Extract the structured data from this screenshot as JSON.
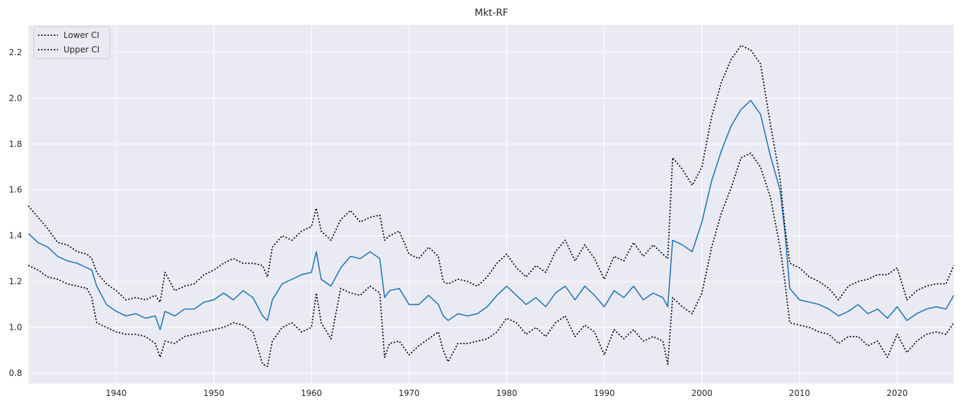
{
  "chart_data": {
    "type": "line",
    "title": "Mkt-RF",
    "xlabel": "",
    "ylabel": "",
    "xlim": [
      1931,
      2025.8
    ],
    "ylim": [
      0.755,
      2.32
    ],
    "xticks": [
      1940,
      1950,
      1960,
      1970,
      1980,
      1990,
      2000,
      2010,
      2020
    ],
    "yticks": [
      0.8,
      1.0,
      1.2,
      1.4,
      1.6,
      1.8,
      2.0,
      2.2
    ],
    "ytick_labels": [
      "0.8",
      "1.0",
      "1.2",
      "1.4",
      "1.6",
      "1.8",
      "2.0",
      "2.2"
    ],
    "grid": true,
    "legend_position": "top-left",
    "legend": [
      "Lower CI",
      "Upper CI"
    ],
    "colors": {
      "estimate": "#1f77b4",
      "ci": "#000000",
      "background": "#eaeaf2",
      "grid": "#ffffff"
    },
    "series": [
      {
        "key": "estimate",
        "style": "solid",
        "x": [
          1931,
          1932,
          1933,
          1934,
          1935,
          1936,
          1937,
          1937.5,
          1938,
          1939,
          1940,
          1941,
          1942,
          1943,
          1944,
          1944.5,
          1945,
          1946,
          1947,
          1948,
          1949,
          1950,
          1951,
          1952,
          1953,
          1954,
          1955,
          1955.5,
          1956,
          1957,
          1958,
          1959,
          1960,
          1960.5,
          1961,
          1962,
          1963,
          1964,
          1965,
          1966,
          1967,
          1967.5,
          1968,
          1969,
          1970,
          1971,
          1972,
          1973,
          1973.5,
          1974,
          1975,
          1976,
          1977,
          1978,
          1979,
          1980,
          1981,
          1982,
          1983,
          1984,
          1985,
          1986,
          1987,
          1988,
          1989,
          1990,
          1991,
          1992,
          1993,
          1994,
          1995,
          1996,
          1996.5,
          1997,
          1998,
          1999,
          2000,
          2001,
          2002,
          2003,
          2004,
          2005,
          2006,
          2007,
          2008,
          2008.5,
          2009,
          2010,
          2011,
          2012,
          2013,
          2014,
          2015,
          2016,
          2017,
          2018,
          2019,
          2020,
          2021,
          2022,
          2023,
          2024,
          2025,
          2025.8
        ],
        "y": [
          1.41,
          1.37,
          1.35,
          1.31,
          1.29,
          1.28,
          1.26,
          1.25,
          1.18,
          1.1,
          1.07,
          1.05,
          1.06,
          1.04,
          1.05,
          0.99,
          1.07,
          1.05,
          1.08,
          1.08,
          1.11,
          1.12,
          1.15,
          1.12,
          1.16,
          1.13,
          1.05,
          1.03,
          1.12,
          1.19,
          1.21,
          1.23,
          1.24,
          1.33,
          1.21,
          1.18,
          1.26,
          1.31,
          1.3,
          1.33,
          1.3,
          1.13,
          1.16,
          1.17,
          1.1,
          1.1,
          1.14,
          1.1,
          1.05,
          1.03,
          1.06,
          1.05,
          1.06,
          1.09,
          1.14,
          1.18,
          1.14,
          1.1,
          1.13,
          1.09,
          1.15,
          1.18,
          1.12,
          1.18,
          1.14,
          1.09,
          1.16,
          1.13,
          1.18,
          1.12,
          1.15,
          1.13,
          1.09,
          1.38,
          1.36,
          1.33,
          1.46,
          1.64,
          1.77,
          1.88,
          1.95,
          1.99,
          1.93,
          1.75,
          1.6,
          1.42,
          1.17,
          1.12,
          1.11,
          1.1,
          1.08,
          1.05,
          1.07,
          1.1,
          1.06,
          1.08,
          1.04,
          1.09,
          1.03,
          1.06,
          1.08,
          1.09,
          1.08,
          1.14
        ]
      },
      {
        "name": "Lower CI",
        "key": "lower",
        "style": "dotted",
        "x": [
          1931,
          1932,
          1933,
          1934,
          1935,
          1936,
          1937,
          1937.5,
          1938,
          1939,
          1940,
          1941,
          1942,
          1943,
          1944,
          1944.5,
          1945,
          1946,
          1947,
          1948,
          1949,
          1950,
          1951,
          1952,
          1953,
          1954,
          1955,
          1955.5,
          1956,
          1957,
          1958,
          1959,
          1960,
          1960.5,
          1961,
          1962,
          1963,
          1964,
          1965,
          1966,
          1967,
          1967.5,
          1968,
          1969,
          1970,
          1971,
          1972,
          1973,
          1973.5,
          1974,
          1975,
          1976,
          1977,
          1978,
          1979,
          1980,
          1981,
          1982,
          1983,
          1984,
          1985,
          1986,
          1987,
          1988,
          1989,
          1990,
          1991,
          1992,
          1993,
          1994,
          1995,
          1996,
          1996.5,
          1997,
          1998,
          1999,
          2000,
          2001,
          2002,
          2003,
          2004,
          2005,
          2006,
          2007,
          2008,
          2008.5,
          2009,
          2010,
          2011,
          2012,
          2013,
          2014,
          2015,
          2016,
          2017,
          2018,
          2019,
          2020,
          2021,
          2022,
          2023,
          2024,
          2025,
          2025.8
        ],
        "y": [
          1.27,
          1.25,
          1.22,
          1.21,
          1.19,
          1.18,
          1.17,
          1.13,
          1.02,
          1.0,
          0.98,
          0.97,
          0.97,
          0.96,
          0.93,
          0.87,
          0.94,
          0.93,
          0.96,
          0.97,
          0.98,
          0.99,
          1.0,
          1.02,
          1.01,
          0.98,
          0.84,
          0.83,
          0.94,
          1.0,
          1.02,
          0.98,
          1.0,
          1.15,
          1.02,
          0.95,
          1.17,
          1.15,
          1.14,
          1.18,
          1.15,
          0.87,
          0.93,
          0.94,
          0.88,
          0.92,
          0.95,
          0.98,
          0.9,
          0.85,
          0.93,
          0.93,
          0.94,
          0.95,
          0.98,
          1.04,
          1.02,
          0.97,
          1.0,
          0.96,
          1.02,
          1.05,
          0.96,
          1.01,
          0.98,
          0.88,
          0.99,
          0.95,
          0.99,
          0.94,
          0.96,
          0.94,
          0.84,
          1.13,
          1.09,
          1.06,
          1.15,
          1.35,
          1.5,
          1.61,
          1.74,
          1.76,
          1.7,
          1.57,
          1.35,
          1.2,
          1.02,
          1.01,
          1.0,
          0.98,
          0.97,
          0.93,
          0.96,
          0.96,
          0.92,
          0.94,
          0.87,
          0.97,
          0.89,
          0.94,
          0.97,
          0.98,
          0.97,
          1.02
        ]
      },
      {
        "name": "Upper CI",
        "key": "upper",
        "style": "dotted",
        "x": [
          1931,
          1932,
          1933,
          1934,
          1935,
          1936,
          1937,
          1937.5,
          1938,
          1939,
          1940,
          1941,
          1942,
          1943,
          1944,
          1944.5,
          1945,
          1946,
          1947,
          1948,
          1949,
          1950,
          1951,
          1952,
          1953,
          1954,
          1955,
          1955.5,
          1956,
          1957,
          1958,
          1959,
          1960,
          1960.5,
          1961,
          1962,
          1963,
          1964,
          1965,
          1966,
          1967,
          1967.5,
          1968,
          1969,
          1970,
          1971,
          1972,
          1973,
          1973.5,
          1974,
          1975,
          1976,
          1977,
          1978,
          1979,
          1980,
          1981,
          1982,
          1983,
          1984,
          1985,
          1986,
          1987,
          1988,
          1989,
          1990,
          1991,
          1992,
          1993,
          1994,
          1995,
          1996,
          1996.5,
          1997,
          1998,
          1999,
          2000,
          2001,
          2002,
          2003,
          2004,
          2005,
          2006,
          2007,
          2008,
          2008.5,
          2009,
          2010,
          2011,
          2012,
          2013,
          2014,
          2015,
          2016,
          2017,
          2018,
          2019,
          2020,
          2021,
          2022,
          2023,
          2024,
          2025,
          2025.8
        ],
        "y": [
          1.53,
          1.48,
          1.43,
          1.37,
          1.36,
          1.33,
          1.32,
          1.3,
          1.24,
          1.19,
          1.16,
          1.12,
          1.13,
          1.12,
          1.14,
          1.11,
          1.24,
          1.16,
          1.18,
          1.19,
          1.23,
          1.25,
          1.28,
          1.3,
          1.28,
          1.28,
          1.27,
          1.22,
          1.35,
          1.4,
          1.38,
          1.42,
          1.44,
          1.52,
          1.42,
          1.38,
          1.47,
          1.51,
          1.46,
          1.48,
          1.49,
          1.38,
          1.4,
          1.42,
          1.32,
          1.3,
          1.35,
          1.31,
          1.2,
          1.19,
          1.21,
          1.2,
          1.18,
          1.22,
          1.28,
          1.32,
          1.26,
          1.22,
          1.27,
          1.24,
          1.33,
          1.38,
          1.29,
          1.36,
          1.3,
          1.21,
          1.31,
          1.29,
          1.37,
          1.31,
          1.36,
          1.32,
          1.3,
          1.74,
          1.69,
          1.62,
          1.7,
          1.92,
          2.07,
          2.17,
          2.23,
          2.21,
          2.15,
          1.89,
          1.65,
          1.44,
          1.28,
          1.26,
          1.22,
          1.2,
          1.17,
          1.12,
          1.18,
          1.2,
          1.21,
          1.23,
          1.23,
          1.26,
          1.12,
          1.16,
          1.18,
          1.19,
          1.19,
          1.27
        ]
      }
    ]
  }
}
